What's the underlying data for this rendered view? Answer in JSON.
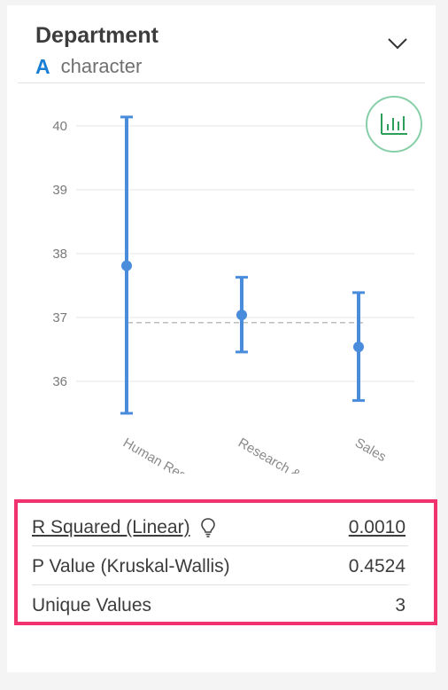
{
  "header": {
    "title": "Department",
    "type_icon_label": "A",
    "type_label": "character",
    "type_icon": "text-type-icon",
    "collapse_icon": "chevron-down-icon",
    "chart_toggle_icon": "bar-chart-icon"
  },
  "colors": {
    "accent": "#4a8cdc",
    "mean_line": "#bdbdbd",
    "highlight_border": "#f0326f",
    "chart_button_border": "#86cfa7",
    "chart_button_icon": "#2e9e5b"
  },
  "chart_data": {
    "type": "errorbar",
    "categories": [
      "Human Resources",
      "Research & Development",
      "Sales"
    ],
    "mean": [
      37.81,
      37.04,
      36.54
    ],
    "lower": [
      35.5,
      36.46,
      35.7
    ],
    "upper": [
      40.14,
      37.63,
      37.39
    ],
    "overall_mean": 36.92,
    "yticks": [
      36,
      37,
      38,
      39,
      40
    ],
    "ylim": [
      35.3,
      40.4
    ],
    "grid": true,
    "xlabel": "",
    "ylabel": ""
  },
  "stats": {
    "r_squared_label": "R Squared (Linear)",
    "r_squared_value": "0.0010",
    "p_value_label": "P Value (Kruskal-Wallis)",
    "p_value_value": "0.4524",
    "unique_label": "Unique Values",
    "unique_value": "3",
    "hint_icon": "lightbulb-icon"
  }
}
